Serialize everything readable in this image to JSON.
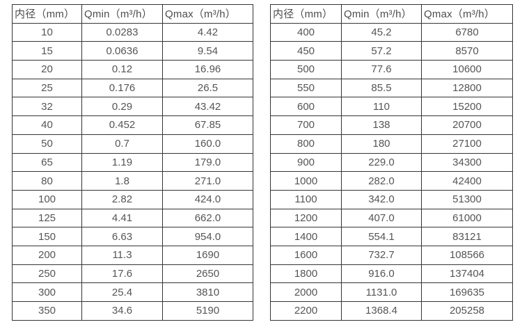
{
  "tables": [
    {
      "name": "pipe-flow-table-small-diameters",
      "headers": [
        "内径（mm）",
        "Qmin（m³/h）",
        "Qmax（m³/h）"
      ],
      "rows": [
        [
          "10",
          "0.0283",
          "4.42"
        ],
        [
          "15",
          "0.0636",
          "9.54"
        ],
        [
          "20",
          "0.12",
          "16.96"
        ],
        [
          "25",
          "0.176",
          "26.5"
        ],
        [
          "32",
          "0.29",
          "43.42"
        ],
        [
          "40",
          "0.452",
          "67.85"
        ],
        [
          "50",
          "0.7",
          "160.0"
        ],
        [
          "65",
          "1.19",
          "179.0"
        ],
        [
          "80",
          "1.8",
          "271.0"
        ],
        [
          "100",
          "2.82",
          "424.0"
        ],
        [
          "125",
          "4.41",
          "662.0"
        ],
        [
          "150",
          "6.63",
          "954.0"
        ],
        [
          "200",
          "11.3",
          "1690"
        ],
        [
          "250",
          "17.6",
          "2650"
        ],
        [
          "300",
          "25.4",
          "3810"
        ],
        [
          "350",
          "34.6",
          "5190"
        ]
      ]
    },
    {
      "name": "pipe-flow-table-large-diameters",
      "headers": [
        "内径（mm）",
        "Qmin（m³/h）",
        "Qmax（m³/h）"
      ],
      "rows": [
        [
          "400",
          "45.2",
          "6780"
        ],
        [
          "450",
          "57.2",
          "8570"
        ],
        [
          "500",
          "77.6",
          "10600"
        ],
        [
          "550",
          "85.5",
          "12800"
        ],
        [
          "600",
          "110",
          "15200"
        ],
        [
          "700",
          "138",
          "20700"
        ],
        [
          "800",
          "180",
          "27100"
        ],
        [
          "900",
          "229.0",
          "34300"
        ],
        [
          "1000",
          "282.0",
          "42400"
        ],
        [
          "1100",
          "342.0",
          "51300"
        ],
        [
          "1200",
          "407.0",
          "61000"
        ],
        [
          "1400",
          "554.1",
          "83121"
        ],
        [
          "1600",
          "732.7",
          "108566"
        ],
        [
          "1800",
          "916.0",
          "137404"
        ],
        [
          "2000",
          "1131.0",
          "169635"
        ],
        [
          "2200",
          "1368.4",
          "205258"
        ]
      ]
    }
  ],
  "colors": {
    "border": "#343434",
    "text": "#4d4d4d",
    "background": "#ffffff"
  }
}
